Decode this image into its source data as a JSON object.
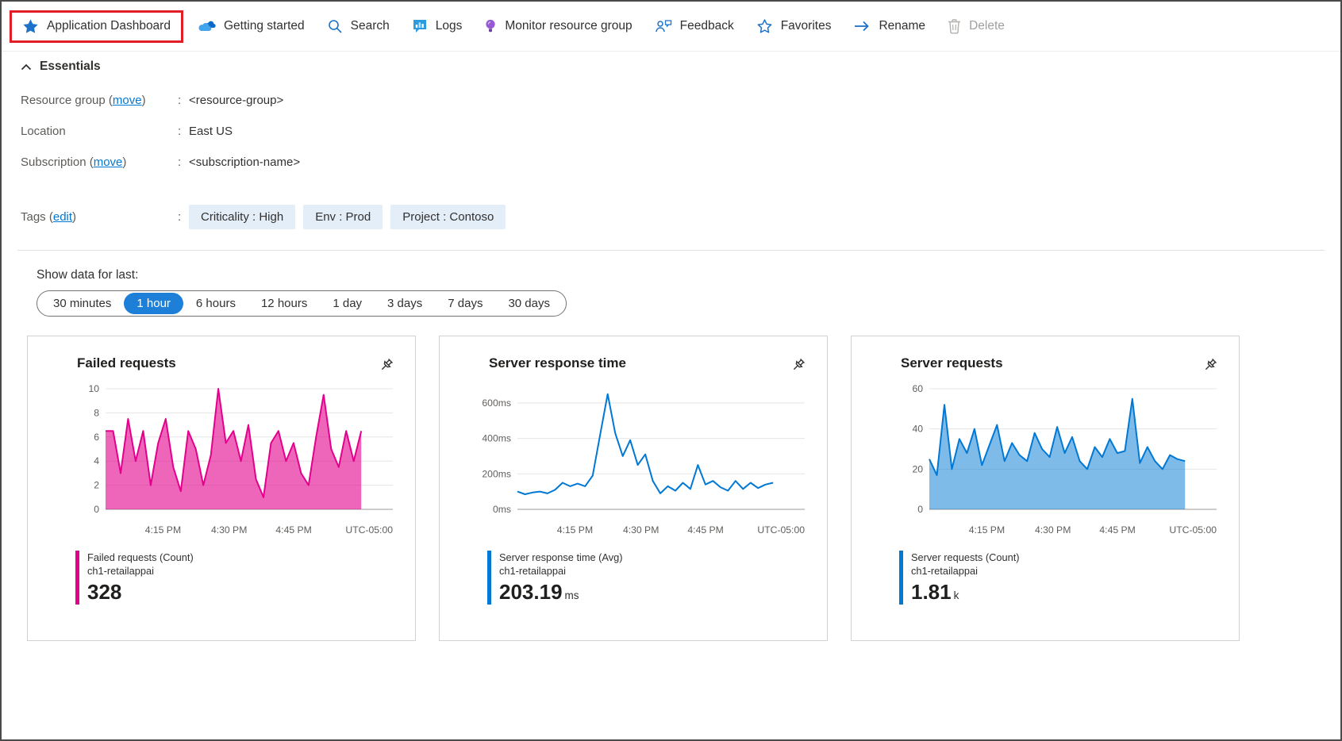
{
  "toolbar": {
    "items": [
      {
        "label": "Application Dashboard"
      },
      {
        "label": "Getting started"
      },
      {
        "label": "Search"
      },
      {
        "label": "Logs"
      },
      {
        "label": "Monitor resource group"
      },
      {
        "label": "Feedback"
      },
      {
        "label": "Favorites"
      },
      {
        "label": "Rename"
      },
      {
        "label": "Delete"
      }
    ]
  },
  "essentials": {
    "header": "Essentials",
    "resource_group": {
      "label": "Resource group (",
      "link": "move",
      "close": ")",
      "sep": ":",
      "value": "<resource-group>"
    },
    "location": {
      "label": "Location",
      "sep": ":",
      "value": "East US"
    },
    "subscription": {
      "label": "Subscription (",
      "link": "move",
      "close": ")",
      "sep": ":",
      "value": "<subscription-name>"
    },
    "tags": {
      "label": "Tags (",
      "link": "edit",
      "close": ")",
      "sep": ":",
      "values": [
        "Criticality : High",
        "Env : Prod",
        "Project : Contoso"
      ]
    }
  },
  "time_range": {
    "label": "Show data for last:",
    "options": [
      "30 minutes",
      "1 hour",
      "6 hours",
      "12 hours",
      "1 day",
      "3 days",
      "7 days",
      "30 days"
    ],
    "selected": "1 hour"
  },
  "colors": {
    "accent_blue": "#0078d4",
    "selected_pill_blue": "#1e7fd8",
    "magenta_series": "#E3008C",
    "blue_series": "#0078D4",
    "highlight_red": "#e11d26"
  },
  "chart_data": [
    {
      "type": "area",
      "title": "Failed requests",
      "series": [
        {
          "name": "Failed requests (Count)",
          "resource": "ch1-retailappai",
          "values": [
            6.5,
            6.5,
            3,
            7.5,
            4,
            6.5,
            2,
            5.5,
            7.5,
            3.5,
            1.5,
            6.5,
            5,
            2,
            4.5,
            10,
            5.5,
            6.5,
            4,
            7,
            2.5,
            1,
            5.5,
            6.5,
            4,
            5.5,
            3,
            2,
            6,
            9.5,
            5,
            3.5,
            6.5,
            4,
            6.5
          ]
        }
      ],
      "color": "#E3008C",
      "fill_color": "rgba(227,0,140,0.6)",
      "ylim": [
        0,
        10
      ],
      "yticks": [
        0,
        2,
        4,
        6,
        8,
        10
      ],
      "ytick_labels": [
        "0",
        "2",
        "4",
        "6",
        "8",
        "10"
      ],
      "xtick_labels": [
        "4:15 PM",
        "4:30 PM",
        "4:45 PM"
      ],
      "timezone_label": "UTC-05:00",
      "grid": true,
      "legend_position": "bottom-left",
      "total": {
        "value": "328",
        "unit": ""
      }
    },
    {
      "type": "line",
      "title": "Server response time",
      "series": [
        {
          "name": "Server response time (Avg)",
          "resource": "ch1-retailappai",
          "values": [
            100,
            85,
            95,
            100,
            90,
            110,
            150,
            130,
            145,
            130,
            190,
            420,
            650,
            430,
            300,
            390,
            250,
            310,
            160,
            90,
            130,
            105,
            150,
            115,
            250,
            140,
            160,
            125,
            105,
            160,
            115,
            150,
            120,
            140,
            150
          ]
        }
      ],
      "color": "#0078D4",
      "fill_color": null,
      "ylim": [
        0,
        680
      ],
      "yticks": [
        0,
        200,
        400,
        600
      ],
      "ytick_labels": [
        "0ms",
        "200ms",
        "400ms",
        "600ms"
      ],
      "xtick_labels": [
        "4:15 PM",
        "4:30 PM",
        "4:45 PM"
      ],
      "timezone_label": "UTC-05:00",
      "grid": true,
      "legend_position": "bottom-left",
      "total": {
        "value": "203.19",
        "unit": "ms"
      }
    },
    {
      "type": "area",
      "title": "Server requests",
      "series": [
        {
          "name": "Server requests (Count)",
          "resource": "ch1-retailappai",
          "values": [
            25,
            17,
            52,
            20,
            35,
            28,
            40,
            22,
            32,
            42,
            24,
            33,
            27,
            24,
            38,
            30,
            26,
            41,
            28,
            36,
            24,
            20,
            31,
            26,
            35,
            28,
            29,
            55,
            23,
            31,
            24,
            20,
            27,
            25,
            24
          ]
        }
      ],
      "color": "#0078D4",
      "fill_color": "rgba(0,120,212,0.5)",
      "ylim": [
        0,
        60
      ],
      "yticks": [
        0,
        20,
        40,
        60
      ],
      "ytick_labels": [
        "0",
        "20",
        "40",
        "60"
      ],
      "xtick_labels": [
        "4:15 PM",
        "4:30 PM",
        "4:45 PM"
      ],
      "timezone_label": "UTC-05:00",
      "grid": true,
      "legend_position": "bottom-left",
      "total": {
        "value": "1.81",
        "unit": "k"
      }
    }
  ]
}
